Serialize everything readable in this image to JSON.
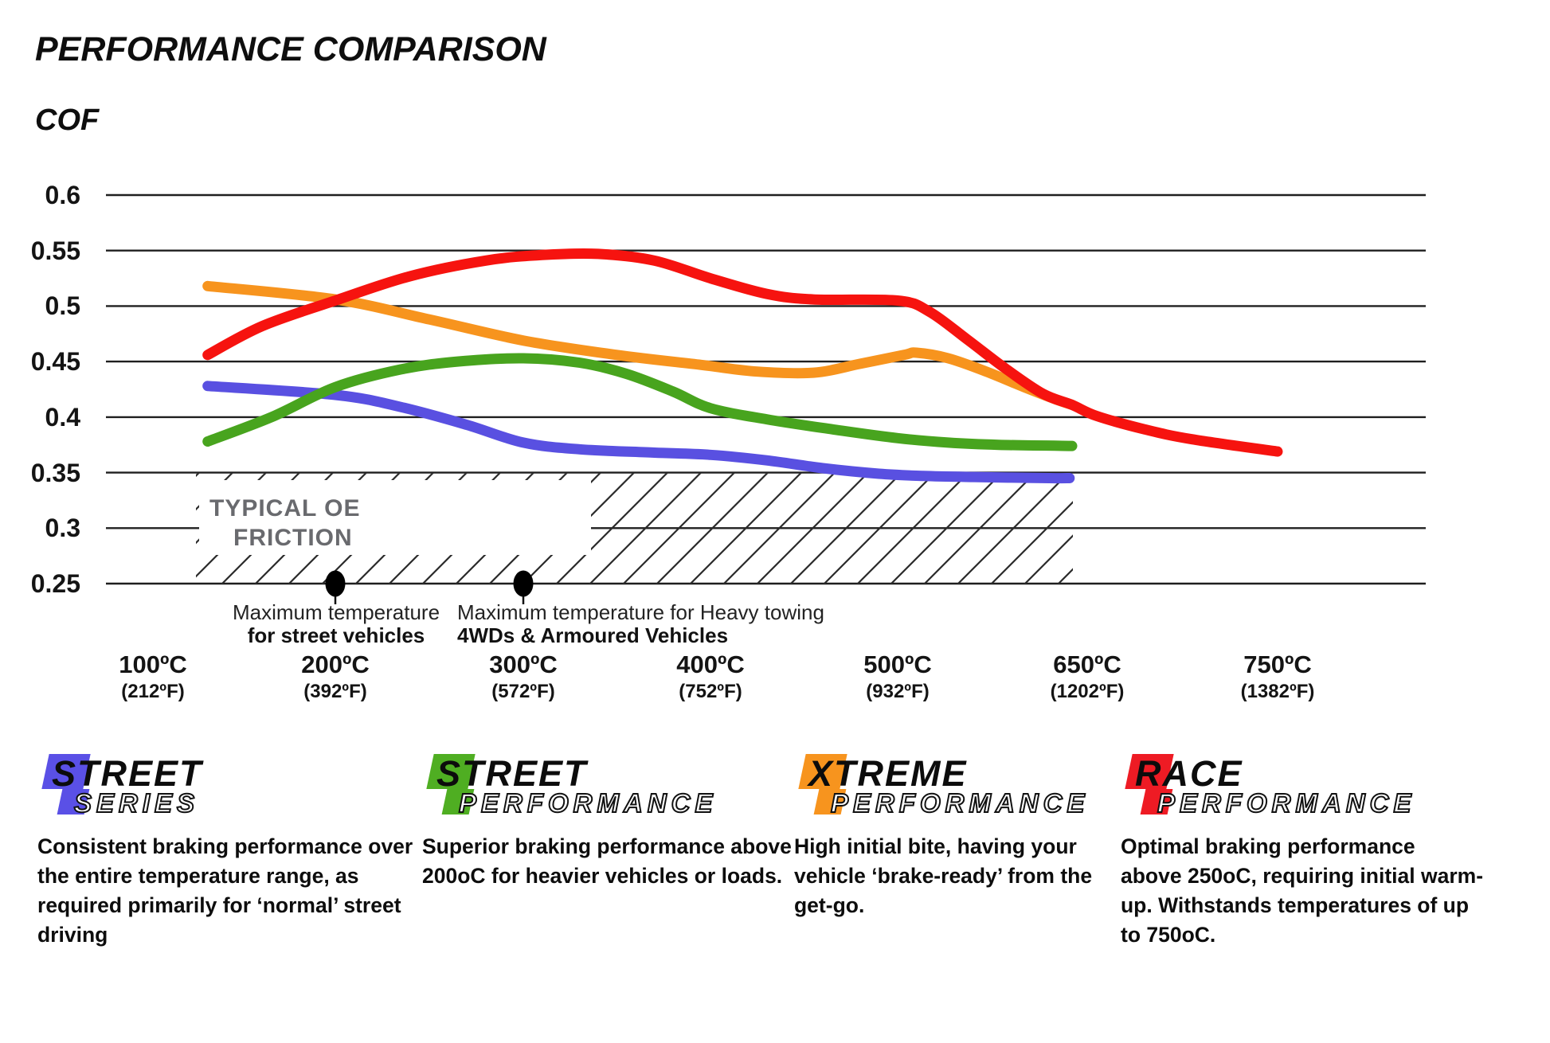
{
  "title": "PERFORMANCE COMPARISON",
  "cof_label": "COF",
  "chart_data": {
    "type": "line",
    "title": "PERFORMANCE COMPARISON",
    "ylabel": "COF",
    "grid": "horizontal-only",
    "y_axis": {
      "min": 0.25,
      "max": 0.6,
      "tick_values": [
        0.6,
        0.55,
        0.5,
        0.45,
        0.4,
        0.35,
        0.3,
        0.25
      ],
      "tick_labels": [
        "0.6",
        "0.55",
        "0.5",
        "0.45",
        "0.4",
        "0.35",
        "0.3",
        "0.25"
      ]
    },
    "x_axis": {
      "temps_c": [
        100,
        200,
        300,
        400,
        500,
        650,
        750
      ],
      "labels_c": [
        "100ºC",
        "200ºC",
        "300ºC",
        "400ºC",
        "500ºC",
        "650ºC",
        "750ºC"
      ],
      "labels_f": [
        "(212ºF)",
        "(392ºF)",
        "(572ºF)",
        "(752ºF)",
        "(932ºF)",
        "(1202ºF)",
        "(1382ºF)"
      ]
    },
    "series": [
      {
        "name": "Street Series",
        "color": "#5950E1",
        "points": [
          [
            130,
            0.428
          ],
          [
            200,
            0.42
          ],
          [
            235,
            0.409
          ],
          [
            270,
            0.393
          ],
          [
            300,
            0.377
          ],
          [
            330,
            0.371
          ],
          [
            370,
            0.368
          ],
          [
            400,
            0.366
          ],
          [
            430,
            0.361
          ],
          [
            460,
            0.354
          ],
          [
            490,
            0.349
          ],
          [
            520,
            0.347
          ],
          [
            560,
            0.346
          ],
          [
            620,
            0.345
          ],
          [
            636,
            0.345
          ]
        ]
      },
      {
        "name": "Street Performance",
        "color": "#48A41E",
        "points": [
          [
            130,
            0.378
          ],
          [
            165,
            0.4
          ],
          [
            200,
            0.427
          ],
          [
            235,
            0.443
          ],
          [
            265,
            0.45
          ],
          [
            300,
            0.453
          ],
          [
            330,
            0.449
          ],
          [
            355,
            0.439
          ],
          [
            380,
            0.423
          ],
          [
            400,
            0.408
          ],
          [
            430,
            0.398
          ],
          [
            465,
            0.389
          ],
          [
            500,
            0.381
          ],
          [
            540,
            0.377
          ],
          [
            580,
            0.375
          ],
          [
            638,
            0.374
          ]
        ]
      },
      {
        "name": "Xtreme Performance",
        "color": "#F7941E",
        "points": [
          [
            130,
            0.518
          ],
          [
            200,
            0.506
          ],
          [
            250,
            0.488
          ],
          [
            300,
            0.469
          ],
          [
            350,
            0.456
          ],
          [
            395,
            0.447
          ],
          [
            425,
            0.441
          ],
          [
            455,
            0.44
          ],
          [
            480,
            0.448
          ],
          [
            505,
            0.456
          ],
          [
            515,
            0.458
          ],
          [
            540,
            0.453
          ],
          [
            570,
            0.441
          ],
          [
            600,
            0.427
          ],
          [
            625,
            0.416
          ],
          [
            638,
            0.411
          ]
        ]
      },
      {
        "name": "Race Performance",
        "color": "#F6130F",
        "points": [
          [
            130,
            0.456
          ],
          [
            160,
            0.482
          ],
          [
            200,
            0.505
          ],
          [
            240,
            0.527
          ],
          [
            280,
            0.541
          ],
          [
            310,
            0.546
          ],
          [
            340,
            0.547
          ],
          [
            370,
            0.541
          ],
          [
            400,
            0.525
          ],
          [
            430,
            0.511
          ],
          [
            455,
            0.506
          ],
          [
            500,
            0.505
          ],
          [
            525,
            0.495
          ],
          [
            555,
            0.47
          ],
          [
            585,
            0.444
          ],
          [
            615,
            0.421
          ],
          [
            638,
            0.411
          ],
          [
            655,
            0.401
          ],
          [
            680,
            0.389
          ],
          [
            705,
            0.38
          ],
          [
            750,
            0.369
          ]
        ]
      }
    ],
    "oe_region": {
      "label_line1": "TYPICAL OE",
      "label_line2": "FRICTION",
      "cof_top": 0.35,
      "cof_bottom": 0.25
    },
    "annotations": [
      {
        "temp_c": 200,
        "cof": 0.25,
        "lines": [
          "Maximum temperature",
          "for street vehicles"
        ]
      },
      {
        "temp_c": 300,
        "cof": 0.25,
        "lines": [
          "Maximum temperature for Heavy towing",
          "4WDs & Armoured Vehicles"
        ]
      }
    ]
  },
  "legend": [
    {
      "word": "STREET",
      "sub": "SERIES",
      "color": "#5A50E6",
      "desc_lines": [
        "Consistent braking performance over",
        "the entire temperature range, as",
        "required primarily for ‘normal’ street",
        "driving"
      ]
    },
    {
      "word": "STREET",
      "sub": "PERFORMANCE",
      "color": "#4FAE22",
      "desc_lines": [
        "Superior braking performance above",
        "200oC for heavier vehicles or loads.",
        "",
        ""
      ]
    },
    {
      "word": "XTREME",
      "sub": "PERFORMANCE",
      "color": "#F7941E",
      "desc_lines": [
        "High initial bite, having your",
        "vehicle ‘brake-ready’ from the",
        "get-go.",
        ""
      ]
    },
    {
      "word": "RACE",
      "sub": "PERFORMANCE",
      "color": "#EE1B24",
      "desc_lines": [
        "Optimal braking performance",
        "above 250oC, requiring initial warm-",
        "up. Withstands temperatures of up",
        "to 750oC."
      ]
    }
  ]
}
